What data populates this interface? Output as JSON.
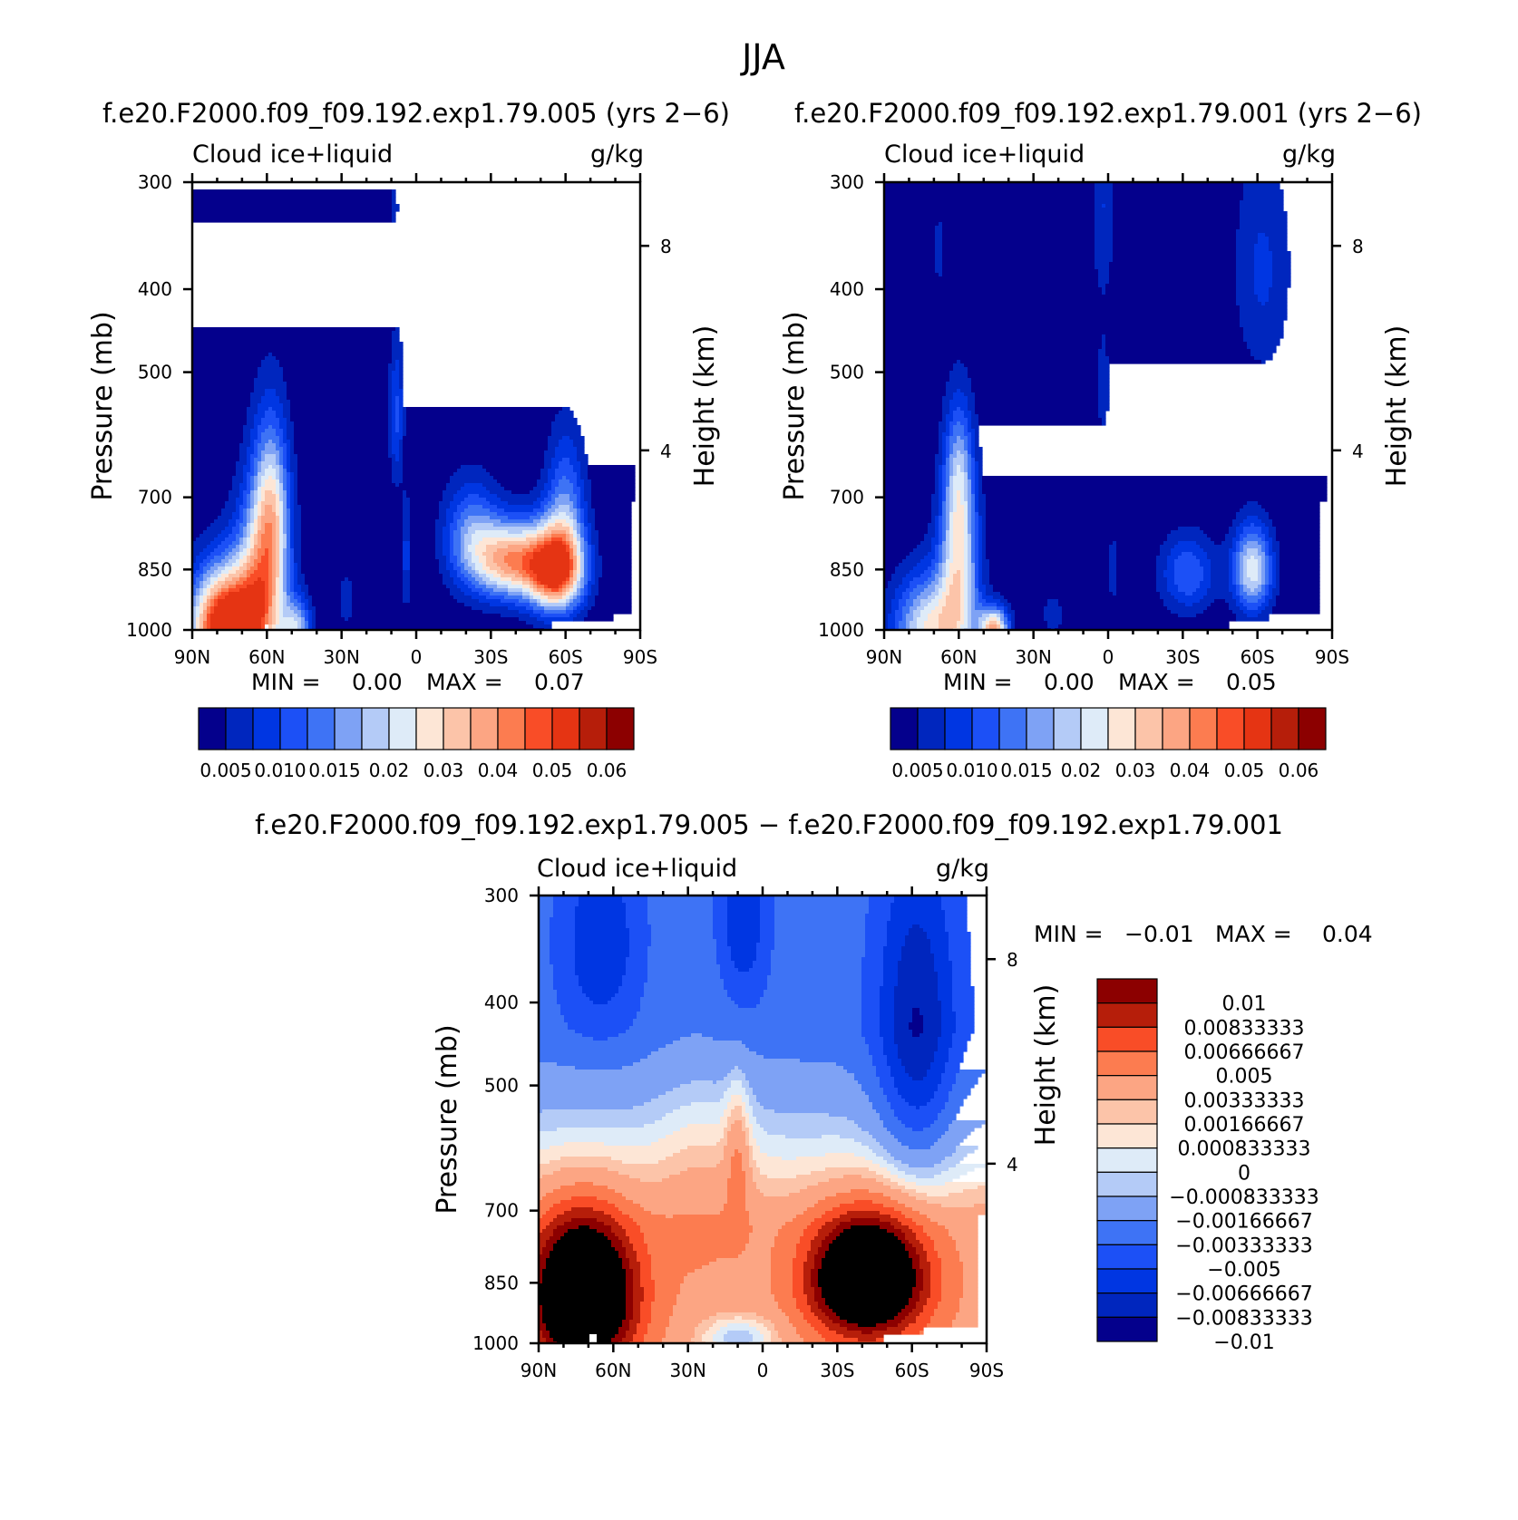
{
  "page": {
    "season_title": "JJA"
  },
  "colors": {
    "abs_palette": [
      "#04008c",
      "#0026be",
      "#0036e2",
      "#1c50f6",
      "#3e73f5",
      "#7ea2f5",
      "#b4cbf7",
      "#deebf8",
      "#fde6d6",
      "#fcc4a9",
      "#fca583",
      "#fc7c50",
      "#f94d27",
      "#e53413",
      "#b61e0a",
      "#8c0000"
    ],
    "diff_palette": [
      "#04008c",
      "#0026be",
      "#0036e2",
      "#1c50f6",
      "#3e73f5",
      "#7ea2f5",
      "#b4cbf7",
      "#deebf8",
      "#fde6d6",
      "#fcc4a9",
      "#fca583",
      "#fc7c50",
      "#f94d27",
      "#b61e0a",
      "#8c0000"
    ],
    "background_field": "#02008c"
  },
  "chart_data": [
    {
      "type": "contour",
      "panel": "top-left",
      "case_title": "f.e20.F2000.f09_f09.192.exp1.79.005 (yrs 2−6)",
      "variable": "Cloud ice+liquid",
      "units": "g/kg",
      "ylabel": "Pressure (mb)",
      "ylabel_right": "Height (km)",
      "y_ticks": [
        "300",
        "400",
        "500",
        "700",
        "850",
        "1000"
      ],
      "y_tick_values": [
        300,
        400,
        500,
        700,
        850,
        1000
      ],
      "height_ticks": [
        "8",
        "4"
      ],
      "height_tick_values_mb": [
        356,
        617
      ],
      "x_ticks": [
        "90N",
        "60N",
        "30N",
        "0",
        "30S",
        "60S",
        "90S"
      ],
      "x_tick_values": [
        90,
        60,
        30,
        0,
        -30,
        -60,
        -90
      ],
      "ylim": [
        300,
        1000
      ],
      "xlim": [
        90,
        -90
      ],
      "min_label": "MIN =",
      "min_value": "0.00",
      "max_label": "MAX =",
      "max_value": "0.07",
      "levels": [
        0.005,
        0.01,
        0.015,
        0.02,
        0.025,
        0.03,
        0.035,
        0.04,
        0.045,
        0.05,
        0.055,
        0.06,
        0.065
      ],
      "colorbar_labels": [
        "0.005",
        "0.010",
        "0.015",
        "0.02",
        "0.03",
        "0.04",
        "0.05",
        "0.06"
      ],
      "features": [
        {
          "region": "NH midlatitude low cloud",
          "lat_range": [
            90,
            35
          ],
          "p_range": [
            500,
            1000
          ],
          "peak": 0.07,
          "peak_lat": 75,
          "peak_p": 985
        },
        {
          "region": "SH midlatitude low cloud",
          "lat_range": [
            -8,
            -72
          ],
          "p_range": [
            600,
            970
          ],
          "peak": 0.065,
          "peak_lat": -56,
          "peak_p": 850
        },
        {
          "region": "Tropical deep convection",
          "lat_range": [
            15,
            2
          ],
          "p_range": [
            450,
            880
          ],
          "peak": 0.015,
          "peak_lat": 8,
          "peak_p": 560
        }
      ]
    },
    {
      "type": "contour",
      "panel": "top-right",
      "case_title": "f.e20.F2000.f09_f09.192.exp1.79.001 (yrs 2−6)",
      "variable": "Cloud ice+liquid",
      "units": "g/kg",
      "ylabel": "Pressure (mb)",
      "ylabel_right": "Height (km)",
      "y_ticks": [
        "300",
        "400",
        "500",
        "700",
        "850",
        "1000"
      ],
      "y_tick_values": [
        300,
        400,
        500,
        700,
        850,
        1000
      ],
      "height_ticks": [
        "8",
        "4"
      ],
      "height_tick_values_mb": [
        356,
        617
      ],
      "x_ticks": [
        "90N",
        "60N",
        "30N",
        "0",
        "30S",
        "60S",
        "90S"
      ],
      "x_tick_values": [
        90,
        60,
        30,
        0,
        -30,
        -60,
        -90
      ],
      "ylim": [
        300,
        1000
      ],
      "xlim": [
        90,
        -90
      ],
      "min_label": "MIN =",
      "min_value": "0.00",
      "max_label": "MAX =",
      "max_value": "0.05",
      "levels": [
        0.005,
        0.01,
        0.015,
        0.02,
        0.025,
        0.03,
        0.035,
        0.04,
        0.045,
        0.05,
        0.055,
        0.06,
        0.065
      ],
      "colorbar_labels": [
        "0.005",
        "0.010",
        "0.015",
        "0.02",
        "0.03",
        "0.04",
        "0.05",
        "0.06"
      ],
      "features": [
        {
          "region": "NH midlatitude low cloud",
          "lat_range": [
            90,
            25
          ],
          "p_range": [
            620,
            1000
          ],
          "peak": 0.05,
          "peak_lat": 46,
          "peak_p": 990
        },
        {
          "region": "SH midlatitude low cloud",
          "lat_range": [
            -35,
            -70
          ],
          "p_range": [
            700,
            960
          ],
          "peak": 0.035,
          "peak_lat": -58,
          "peak_p": 850
        },
        {
          "region": "SH upper-level ice",
          "lat_range": [
            -40,
            -80
          ],
          "p_range": [
            300,
            550
          ],
          "peak": 0.01,
          "peak_lat": -62,
          "peak_p": 360
        }
      ]
    },
    {
      "type": "contour",
      "panel": "bottom-difference",
      "case_title": "f.e20.F2000.f09_f09.192.exp1.79.005 − f.e20.F2000.f09_f09.192.exp1.79.001",
      "variable": "Cloud ice+liquid",
      "units": "g/kg",
      "ylabel": "Pressure (mb)",
      "ylabel_right": "Height (km)",
      "y_ticks": [
        "300",
        "400",
        "500",
        "700",
        "850",
        "1000"
      ],
      "y_tick_values": [
        300,
        400,
        500,
        700,
        850,
        1000
      ],
      "height_ticks": [
        "8",
        "4"
      ],
      "height_tick_values_mb": [
        356,
        617
      ],
      "x_ticks": [
        "90N",
        "60N",
        "30N",
        "0",
        "30S",
        "60S",
        "90S"
      ],
      "x_tick_values": [
        90,
        60,
        30,
        0,
        -30,
        -60,
        -90
      ],
      "ylim": [
        300,
        1000
      ],
      "xlim": [
        90,
        -90
      ],
      "min_label": "MIN =",
      "min_value": "−0.01",
      "max_label": "MAX =",
      "max_value": "0.04",
      "levels": [
        -0.01,
        -0.00833333,
        -0.00666667,
        -0.005,
        -0.00333333,
        -0.00166667,
        -0.000833333,
        0,
        0.000833333,
        0.00166667,
        0.00333333,
        0.005,
        0.00666667,
        0.00833333,
        0.01
      ],
      "colorbar_labels": [
        "0.01",
        "0.00833333",
        "0.00666667",
        "0.005",
        "0.00333333",
        "0.00166667",
        "0.000833333",
        "0",
        "−0.000833333",
        "−0.00166667",
        "−0.00333333",
        "−0.005",
        "−0.00666667",
        "−0.00833333",
        "−0.01"
      ],
      "features": [
        {
          "region": "NH low-level increase",
          "lat_range": [
            90,
            35
          ],
          "p_range": [
            700,
            1000
          ],
          "value": 0.01
        },
        {
          "region": "SH low-level increase",
          "lat_range": [
            -10,
            -70
          ],
          "p_range": [
            700,
            970
          ],
          "value": 0.01
        },
        {
          "region": "Upper tropospheric decrease",
          "lat_range": [
            90,
            -90
          ],
          "p_range": [
            300,
            450
          ],
          "value": -0.005
        },
        {
          "region": "SH upper decrease",
          "lat_range": [
            -35,
            -90
          ],
          "p_range": [
            300,
            650
          ],
          "value": -0.005
        }
      ]
    }
  ]
}
